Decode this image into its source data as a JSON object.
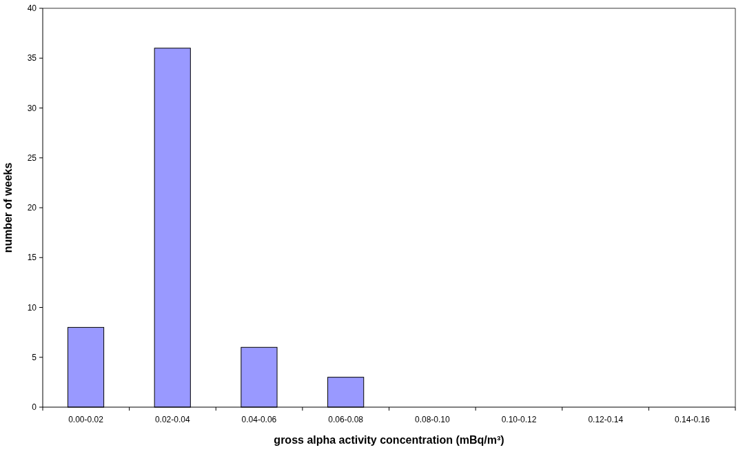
{
  "chart_data": {
    "type": "bar",
    "xlabel": "gross alpha activity concentration (mBq/m³)",
    "ylabel": "number of weeks",
    "categories": [
      "0.00-0.02",
      "0.02-0.04",
      "0.04-0.06",
      "0.06-0.08",
      "0.08-0.10",
      "0.10-0.12",
      "0.12-0.14",
      "0.14-0.16"
    ],
    "values": [
      8,
      36,
      6,
      3,
      0,
      0,
      0,
      0
    ],
    "color": "#9999ff",
    "ylim": [
      0,
      40
    ],
    "yticks": [
      0,
      5,
      10,
      15,
      20,
      25,
      30,
      35,
      40
    ],
    "grid": false
  }
}
